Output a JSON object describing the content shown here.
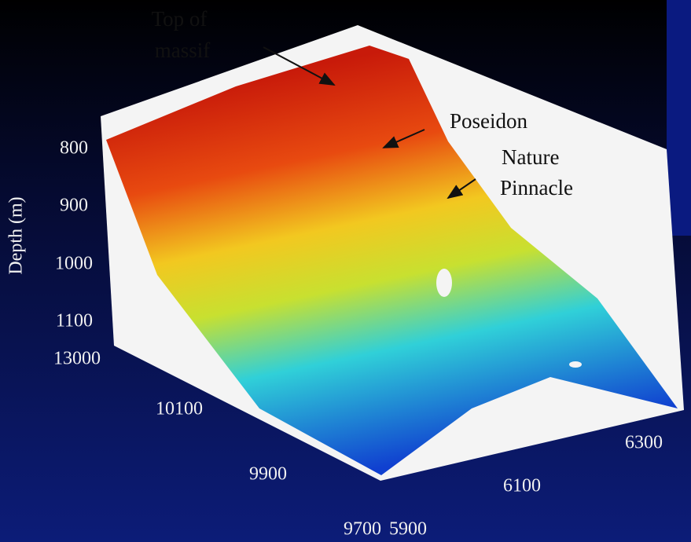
{
  "annotations": [
    "Top of",
    "massif",
    "Poseidon",
    "Nature",
    "Pinnacle"
  ],
  "axes": {
    "z": {
      "label": "Depth (m)",
      "ticks": [
        "800",
        "900",
        "1000",
        "1100"
      ]
    },
    "y": {
      "ticks": [
        "13000",
        "10100",
        "9900",
        "9700"
      ]
    },
    "x": {
      "ticks": [
        "5900",
        "6100",
        "6300"
      ]
    }
  }
}
